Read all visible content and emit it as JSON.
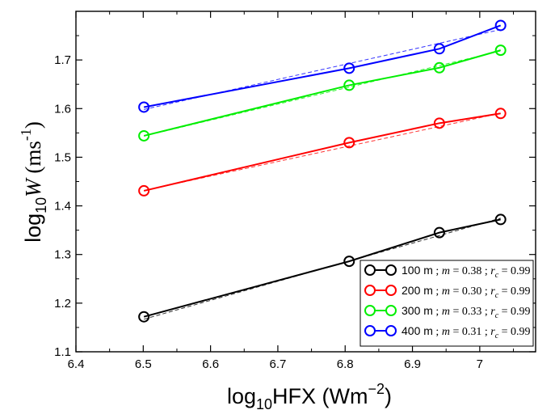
{
  "chart_data": {
    "type": "line",
    "title": "",
    "xlabel": {
      "base": "log",
      "sub": "10",
      "main": "HFX (Wm",
      "sup": "−2",
      "close": ")"
    },
    "ylabel": {
      "base": "log",
      "sub": "10",
      "var": "W",
      "main": " (ms",
      "sup": "-1",
      "close": ")"
    },
    "xlim": [
      6.4,
      7.083
    ],
    "ylim": [
      1.1,
      1.8
    ],
    "xticks": [
      6.4,
      6.5,
      6.6,
      6.7,
      6.8,
      6.9,
      7.0
    ],
    "xtick_labels": [
      "6.4",
      "6.5",
      "6.6",
      "6.7",
      "6.8",
      "6.9",
      "7"
    ],
    "yticks": [
      1.1,
      1.2,
      1.3,
      1.4,
      1.5,
      1.6,
      1.7
    ],
    "ytick_labels": [
      "1.1",
      "1.2",
      "1.3",
      "1.4",
      "1.5",
      "1.6",
      "1.7"
    ],
    "x": [
      6.501,
      6.806,
      6.94,
      7.031
    ],
    "series": [
      {
        "name": "100 m",
        "m": "0.38",
        "rc": "0.99",
        "color": "#000000",
        "values": [
          1.172,
          1.286,
          1.345,
          1.372
        ],
        "fit": [
          1.167,
          1.2864,
          1.339,
          1.3747
        ]
      },
      {
        "name": "200 m",
        "m": "0.30",
        "rc": "0.99",
        "color": "#ff0000",
        "values": [
          1.431,
          1.53,
          1.57,
          1.59
        ],
        "fit": [
          1.4315,
          1.523,
          1.5632,
          1.5905
        ]
      },
      {
        "name": "300 m",
        "m": "0.33",
        "rc": "0.99",
        "color": "#00ee00",
        "values": [
          1.544,
          1.648,
          1.684,
          1.72
        ],
        "fit": [
          1.5435,
          1.6442,
          1.6884,
          1.7184
        ]
      },
      {
        "name": "400 m",
        "m": "0.31",
        "rc": "0.99",
        "color": "#0000ff",
        "values": [
          1.603,
          1.683,
          1.723,
          1.771
        ],
        "fit": [
          1.5982,
          1.6928,
          1.7343,
          1.7625
        ]
      }
    ],
    "legend": {
      "placement": "bottom-right",
      "m_label": "m",
      "rc_label": "r",
      "rc_sub": "c",
      "eq": " = ",
      "sep": " ; "
    },
    "grid": false
  }
}
